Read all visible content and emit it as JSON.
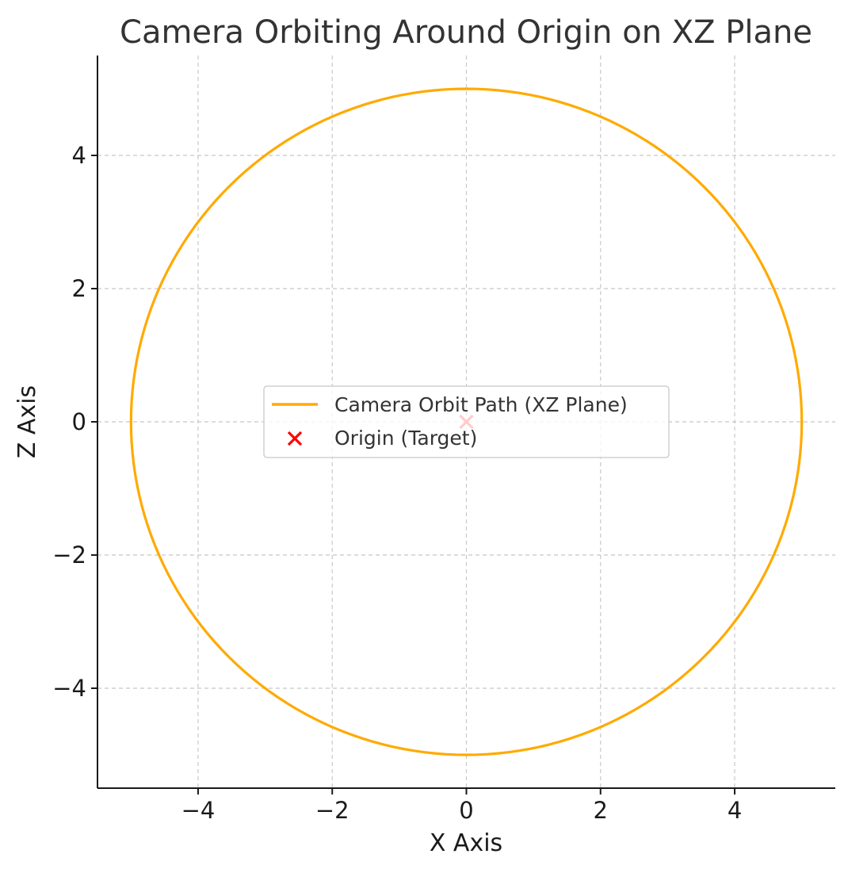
{
  "chart_data": {
    "type": "line",
    "title": "Camera Orbiting Around Origin on XZ Plane",
    "xlabel": "X Axis",
    "ylabel": "Z Axis",
    "xlim": [
      -5.5,
      5.5
    ],
    "ylim": [
      -5.5,
      5.5
    ],
    "xticks": [
      -4,
      -2,
      0,
      2,
      4
    ],
    "yticks": [
      -4,
      -2,
      0,
      2,
      4
    ],
    "xtick_labels": [
      "−4",
      "−2",
      "0",
      "2",
      "4"
    ],
    "ytick_labels": [
      "−4",
      "−2",
      "0",
      "2",
      "4"
    ],
    "grid": true,
    "legend_position": "center",
    "series": [
      {
        "name": "Camera Orbit Path (XZ Plane)",
        "kind": "line",
        "shape": "circle",
        "center": [
          0,
          0
        ],
        "radius": 5,
        "color": "#FFAA00"
      },
      {
        "name": "Origin (Target)",
        "kind": "scatter",
        "marker": "x",
        "points": [
          [
            0,
            0
          ]
        ],
        "color": "#FF0000"
      }
    ]
  }
}
